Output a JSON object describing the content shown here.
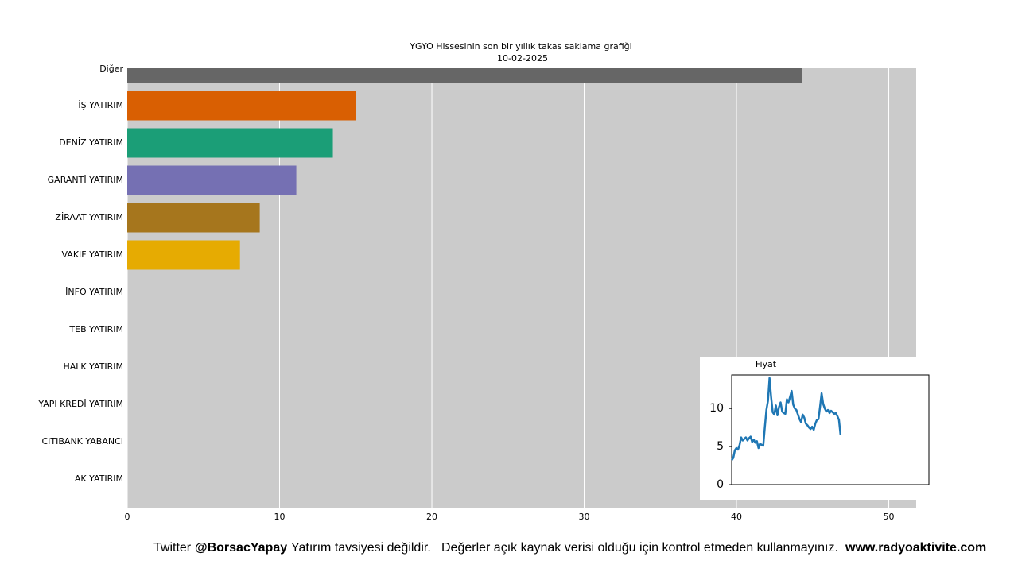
{
  "chart_data": [
    {
      "type": "bar",
      "orientation": "horizontal",
      "title": "YGYO Hissesinin son bir yıllık takas saklama grafiği",
      "subtitle": "10-02-2025",
      "categories": [
        "Diğer",
        "İŞ YATIRIM",
        "DENİZ YATIRIM",
        "GARANTİ YATIRIM",
        "ZİRAAT YATIRIM",
        "VAKIF YATIRIM",
        "İNFO YATIRIM",
        "TEB YATIRIM",
        "HALK YATIRIM",
        "YAPI KREDİ YATIRIM",
        "CITIBANK YABANCI",
        "AK YATIRIM"
      ],
      "values": [
        44.3,
        15.0,
        13.5,
        11.1,
        8.7,
        7.4,
        0,
        0,
        0,
        0,
        0,
        0
      ],
      "colors": [
        "#666666",
        "#d95f02",
        "#1b9e77",
        "#7570b3",
        "#a6761d",
        "#e6ab02",
        "#e7298a",
        "#66a61e",
        "#666666",
        "#d95f02",
        "#1b9e77",
        "#7570b3"
      ],
      "xlim": [
        0,
        51.8
      ],
      "xticks": [
        0,
        10,
        20,
        30,
        40,
        50
      ],
      "grid": true,
      "background": "#cbcbcb"
    },
    {
      "type": "line",
      "title": "Fiyat",
      "color": "#1f77b4",
      "values": [
        3.2,
        3.5,
        4.5,
        4.8,
        4.6,
        5.2,
        6.2,
        5.8,
        6.0,
        6.2,
        5.8,
        6.1,
        6.3,
        5.6,
        5.9,
        5.5,
        5.7,
        4.8,
        5.4,
        5.2,
        5.1,
        7.5,
        9.8,
        11.0,
        14.0,
        11.5,
        9.5,
        9.2,
        10.4,
        9.1,
        10.2,
        10.8,
        9.6,
        9.4,
        9.3,
        11.2,
        10.8,
        11.5,
        12.3,
        10.5,
        10.0,
        9.8,
        9.2,
        8.6,
        8.2,
        9.2,
        8.8,
        8.0,
        7.8,
        7.5,
        7.3,
        7.6,
        7.2,
        8.0,
        8.5,
        8.6,
        10.2,
        12.0,
        10.6,
        10.0,
        9.6,
        9.8,
        9.4,
        9.7,
        9.5,
        9.3,
        9.4,
        9.0,
        8.5,
        6.5
      ],
      "xlim": [
        0,
        125
      ],
      "ylim": [
        0,
        14.4
      ],
      "yticks": [
        0,
        5,
        10
      ]
    }
  ],
  "footer": {
    "prefix": "Twitter",
    "handle": "@BorsacYapay",
    "note": "Yatırım tavsiyesi değildir.",
    "disclaimer": "Değerler açık kaynak verisi olduğu için kontrol etmeden kullanmayınız.",
    "site": "www.radyoaktivite.com"
  }
}
